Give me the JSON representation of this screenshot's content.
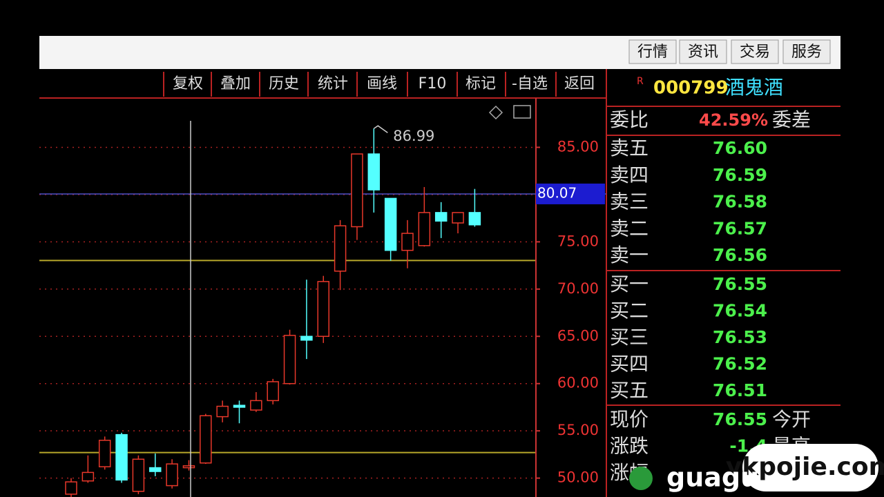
{
  "top_menu": [
    "行情",
    "资讯",
    "交易",
    "服务"
  ],
  "toolbar": [
    "复权",
    "叠加",
    "历史",
    "统计",
    "画线",
    "F10",
    "标记",
    "-自选",
    "返回"
  ],
  "stock": {
    "badge": "R",
    "code": "000799",
    "name": "酒鬼酒"
  },
  "order_book": {
    "ratio": {
      "label": "委比",
      "value": "42.59%",
      "diff_label": "委差"
    },
    "sell": [
      {
        "label": "卖五",
        "price": "76.60"
      },
      {
        "label": "卖四",
        "price": "76.59"
      },
      {
        "label": "卖三",
        "price": "76.58"
      },
      {
        "label": "卖二",
        "price": "76.57"
      },
      {
        "label": "卖一",
        "price": "76.56"
      }
    ],
    "buy": [
      {
        "label": "买一",
        "price": "76.55"
      },
      {
        "label": "买二",
        "price": "76.54"
      },
      {
        "label": "买三",
        "price": "76.53"
      },
      {
        "label": "买四",
        "price": "76.52"
      },
      {
        "label": "买五",
        "price": "76.51"
      }
    ],
    "quote": [
      {
        "label": "现价",
        "value": "76.55",
        "extra": "今开"
      },
      {
        "label": "涨跌",
        "value": "-1.4",
        "extra": "最高"
      },
      {
        "label": "涨幅"
      }
    ]
  },
  "watermark": {
    "site": "ykpojie.com",
    "logo": "guagu"
  },
  "chart_data": {
    "type": "candlestick",
    "open": [
      48.3,
      49.7,
      51.2,
      54.6,
      48.6,
      51.1,
      49.2,
      51.1,
      51.6,
      56.5,
      57.7,
      57.2,
      58.2,
      60.0,
      65.0,
      65.0,
      71.9,
      76.6,
      84.3,
      79.6,
      74.1,
      74.6,
      78.1,
      77.0,
      78.1
    ],
    "high": [
      50.0,
      52.4,
      54.4,
      54.8,
      52.4,
      52.6,
      52.0,
      51.9,
      56.8,
      58.2,
      58.2,
      59.1,
      60.5,
      65.7,
      71.0,
      71.4,
      77.3,
      84.3,
      86.99,
      79.6,
      77.3,
      80.8,
      79.2,
      78.1,
      80.6
    ],
    "low": [
      48.0,
      49.5,
      50.9,
      49.5,
      48.3,
      50.2,
      48.9,
      50.8,
      51.5,
      55.9,
      55.8,
      57.0,
      57.8,
      59.9,
      62.6,
      64.3,
      69.9,
      75.2,
      78.1,
      73.0,
      72.2,
      74.5,
      75.4,
      75.9,
      76.6
    ],
    "close": [
      49.6,
      50.6,
      54.0,
      49.8,
      52.0,
      50.7,
      51.5,
      51.3,
      56.6,
      57.6,
      57.5,
      58.2,
      60.2,
      65.1,
      64.6,
      70.8,
      76.7,
      84.3,
      80.5,
      74.1,
      75.9,
      78.1,
      77.2,
      78.1,
      76.8
    ],
    "up_color": "#e8382a",
    "down_color": "#54ffff",
    "ylim": [
      48,
      90
    ],
    "yticks": [
      {
        "value": 85,
        "label": "85.00"
      },
      {
        "value": 80,
        "label": "80.00"
      },
      {
        "value": 75,
        "label": "75.00"
      },
      {
        "value": 70,
        "label": "70.00"
      },
      {
        "value": 65,
        "label": "65.00"
      },
      {
        "value": 60,
        "label": "60.00"
      },
      {
        "value": 55,
        "label": "55.00"
      },
      {
        "value": 50,
        "label": "50.00"
      }
    ],
    "grid": true,
    "high_label": 86.99,
    "price_line": 80.07,
    "support_lines": [
      73.03,
      52.7
    ]
  }
}
